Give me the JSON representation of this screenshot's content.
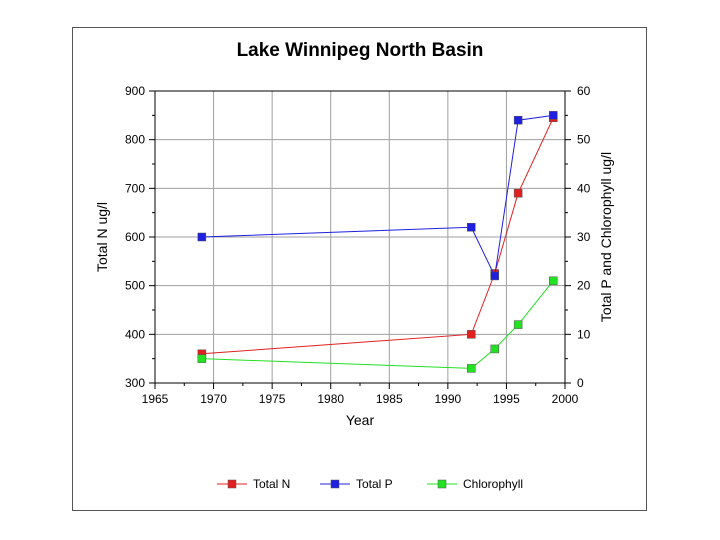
{
  "chart_data": {
    "type": "line",
    "title": "Lake Winnipeg North Basin",
    "xlabel": "Year",
    "ylabel_left": "Total N ug/l",
    "ylabel_right": "Total P and Chlorophyll ug/l",
    "xlim": [
      1965,
      2000
    ],
    "ylim_left": [
      300,
      900
    ],
    "ylim_right": [
      0,
      60
    ],
    "x_ticks": [
      1965,
      1970,
      1975,
      1980,
      1985,
      1990,
      1995,
      2000
    ],
    "y_left_ticks": [
      300,
      400,
      500,
      600,
      700,
      800,
      900
    ],
    "y_right_ticks": [
      0,
      10,
      20,
      30,
      40,
      50,
      60
    ],
    "grid": true,
    "legend_position": "bottom",
    "series": [
      {
        "name": "Total N",
        "axis": "left",
        "color": "#e02020",
        "x": [
          1969,
          1992,
          1994,
          1996,
          1999
        ],
        "values": [
          360,
          400,
          525,
          690,
          845
        ]
      },
      {
        "name": "Total P",
        "axis": "right",
        "color": "#1f1fe0",
        "x": [
          1969,
          1992,
          1994,
          1996,
          1999
        ],
        "values": [
          30,
          32,
          22,
          54,
          55
        ]
      },
      {
        "name": "Chlorophyll",
        "axis": "right",
        "color": "#22e022",
        "x": [
          1969,
          1992,
          1994,
          1996,
          1999
        ],
        "values": [
          5,
          3,
          7,
          12,
          21
        ]
      }
    ]
  }
}
